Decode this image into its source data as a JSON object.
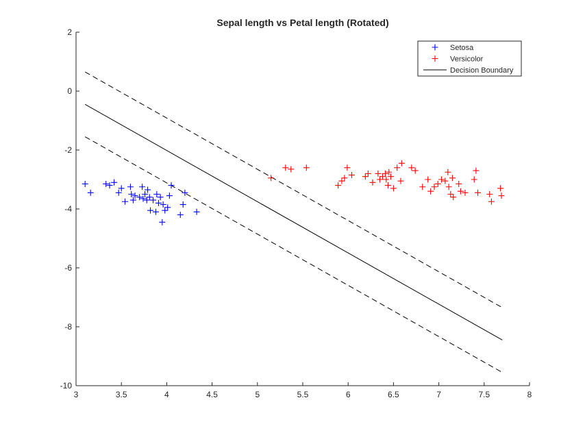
{
  "chart_data": {
    "type": "scatter",
    "title": "Sepal length vs Petal length (Rotated)",
    "xlabel": "",
    "ylabel": "",
    "xlim": [
      3,
      8
    ],
    "ylim": [
      -10,
      2
    ],
    "x_ticks": [
      3,
      3.5,
      4,
      4.5,
      5,
      5.5,
      6,
      6.5,
      7,
      7.5,
      8
    ],
    "y_ticks": [
      -10,
      -8,
      -6,
      -4,
      -2,
      0,
      2
    ],
    "x_tick_labels": [
      "3",
      "3.5",
      "4",
      "4.5",
      "5",
      "5.5",
      "6",
      "6.5",
      "7",
      "7.5",
      "8"
    ],
    "y_tick_labels": [
      "-10",
      "-8",
      "-6",
      "-4",
      "-2",
      "0",
      "2"
    ],
    "grid": false,
    "legend_position": "top-right",
    "series": [
      {
        "name": "Setosa",
        "marker": "+",
        "color": "#0000ff",
        "points": [
          [
            3.1,
            -3.15
          ],
          [
            3.16,
            -3.45
          ],
          [
            3.33,
            -3.15
          ],
          [
            3.37,
            -3.2
          ],
          [
            3.42,
            -3.1
          ],
          [
            3.47,
            -3.45
          ],
          [
            3.5,
            -3.3
          ],
          [
            3.54,
            -3.75
          ],
          [
            3.6,
            -3.25
          ],
          [
            3.61,
            -3.5
          ],
          [
            3.63,
            -3.7
          ],
          [
            3.65,
            -3.55
          ],
          [
            3.7,
            -3.6
          ],
          [
            3.73,
            -3.25
          ],
          [
            3.74,
            -3.65
          ],
          [
            3.76,
            -3.5
          ],
          [
            3.78,
            -3.7
          ],
          [
            3.79,
            -3.35
          ],
          [
            3.81,
            -3.6
          ],
          [
            3.82,
            -4.05
          ],
          [
            3.85,
            -3.7
          ],
          [
            3.88,
            -4.1
          ],
          [
            3.89,
            -3.5
          ],
          [
            3.91,
            -3.8
          ],
          [
            3.93,
            -3.6
          ],
          [
            3.95,
            -4.45
          ],
          [
            3.96,
            -3.85
          ],
          [
            3.98,
            -4.05
          ],
          [
            4.01,
            -3.95
          ],
          [
            4.03,
            -3.55
          ],
          [
            4.05,
            -3.2
          ],
          [
            4.15,
            -4.2
          ],
          [
            4.18,
            -3.85
          ],
          [
            4.2,
            -3.45
          ],
          [
            4.33,
            -4.1
          ]
        ]
      },
      {
        "name": "Versicolor",
        "marker": "+",
        "color": "#ff0000",
        "points": [
          [
            5.15,
            -2.95
          ],
          [
            5.31,
            -2.6
          ],
          [
            5.37,
            -2.65
          ],
          [
            5.54,
            -2.6
          ],
          [
            5.89,
            -3.2
          ],
          [
            5.93,
            -3.05
          ],
          [
            5.96,
            -2.95
          ],
          [
            5.99,
            -2.6
          ],
          [
            6.04,
            -2.85
          ],
          [
            6.19,
            -2.9
          ],
          [
            6.22,
            -2.8
          ],
          [
            6.27,
            -3.1
          ],
          [
            6.33,
            -2.8
          ],
          [
            6.35,
            -3.0
          ],
          [
            6.38,
            -2.9
          ],
          [
            6.41,
            -2.8
          ],
          [
            6.42,
            -3.0
          ],
          [
            6.44,
            -3.2
          ],
          [
            6.45,
            -2.75
          ],
          [
            6.47,
            -2.9
          ],
          [
            6.5,
            -3.3
          ],
          [
            6.54,
            -2.6
          ],
          [
            6.58,
            -3.05
          ],
          [
            6.59,
            -2.45
          ],
          [
            6.7,
            -2.6
          ],
          [
            6.74,
            -2.7
          ],
          [
            6.82,
            -3.25
          ],
          [
            6.88,
            -3.0
          ],
          [
            6.91,
            -3.4
          ],
          [
            6.95,
            -3.25
          ],
          [
            6.99,
            -3.15
          ],
          [
            7.03,
            -3.0
          ],
          [
            7.07,
            -3.05
          ],
          [
            7.1,
            -2.75
          ],
          [
            7.11,
            -3.25
          ],
          [
            7.13,
            -3.5
          ],
          [
            7.15,
            -2.95
          ],
          [
            7.16,
            -3.6
          ],
          [
            7.22,
            -3.15
          ],
          [
            7.24,
            -3.4
          ],
          [
            7.29,
            -3.45
          ],
          [
            7.39,
            -3.0
          ],
          [
            7.41,
            -2.7
          ],
          [
            7.43,
            -3.45
          ],
          [
            7.56,
            -3.5
          ],
          [
            7.58,
            -3.75
          ],
          [
            7.68,
            -3.3
          ],
          [
            7.69,
            -3.55
          ]
        ]
      }
    ],
    "lines": [
      {
        "name": "Decision Boundary",
        "style": "solid",
        "color": "#000000",
        "x": [
          3.1,
          7.7
        ],
        "y": [
          -0.45,
          -8.45
        ]
      },
      {
        "style": "dashed",
        "color": "#000000",
        "x": [
          3.1,
          7.7
        ],
        "y": [
          0.65,
          -7.35
        ]
      },
      {
        "style": "dashed",
        "color": "#000000",
        "x": [
          3.1,
          7.7
        ],
        "y": [
          -1.55,
          -9.55
        ]
      }
    ],
    "legend": [
      {
        "label": "Setosa",
        "marker": "+",
        "color": "#0000ff"
      },
      {
        "label": "Versicolor",
        "marker": "+",
        "color": "#ff0000"
      },
      {
        "label": "Decision Boundary",
        "marker": "line",
        "color": "#000000"
      }
    ]
  }
}
